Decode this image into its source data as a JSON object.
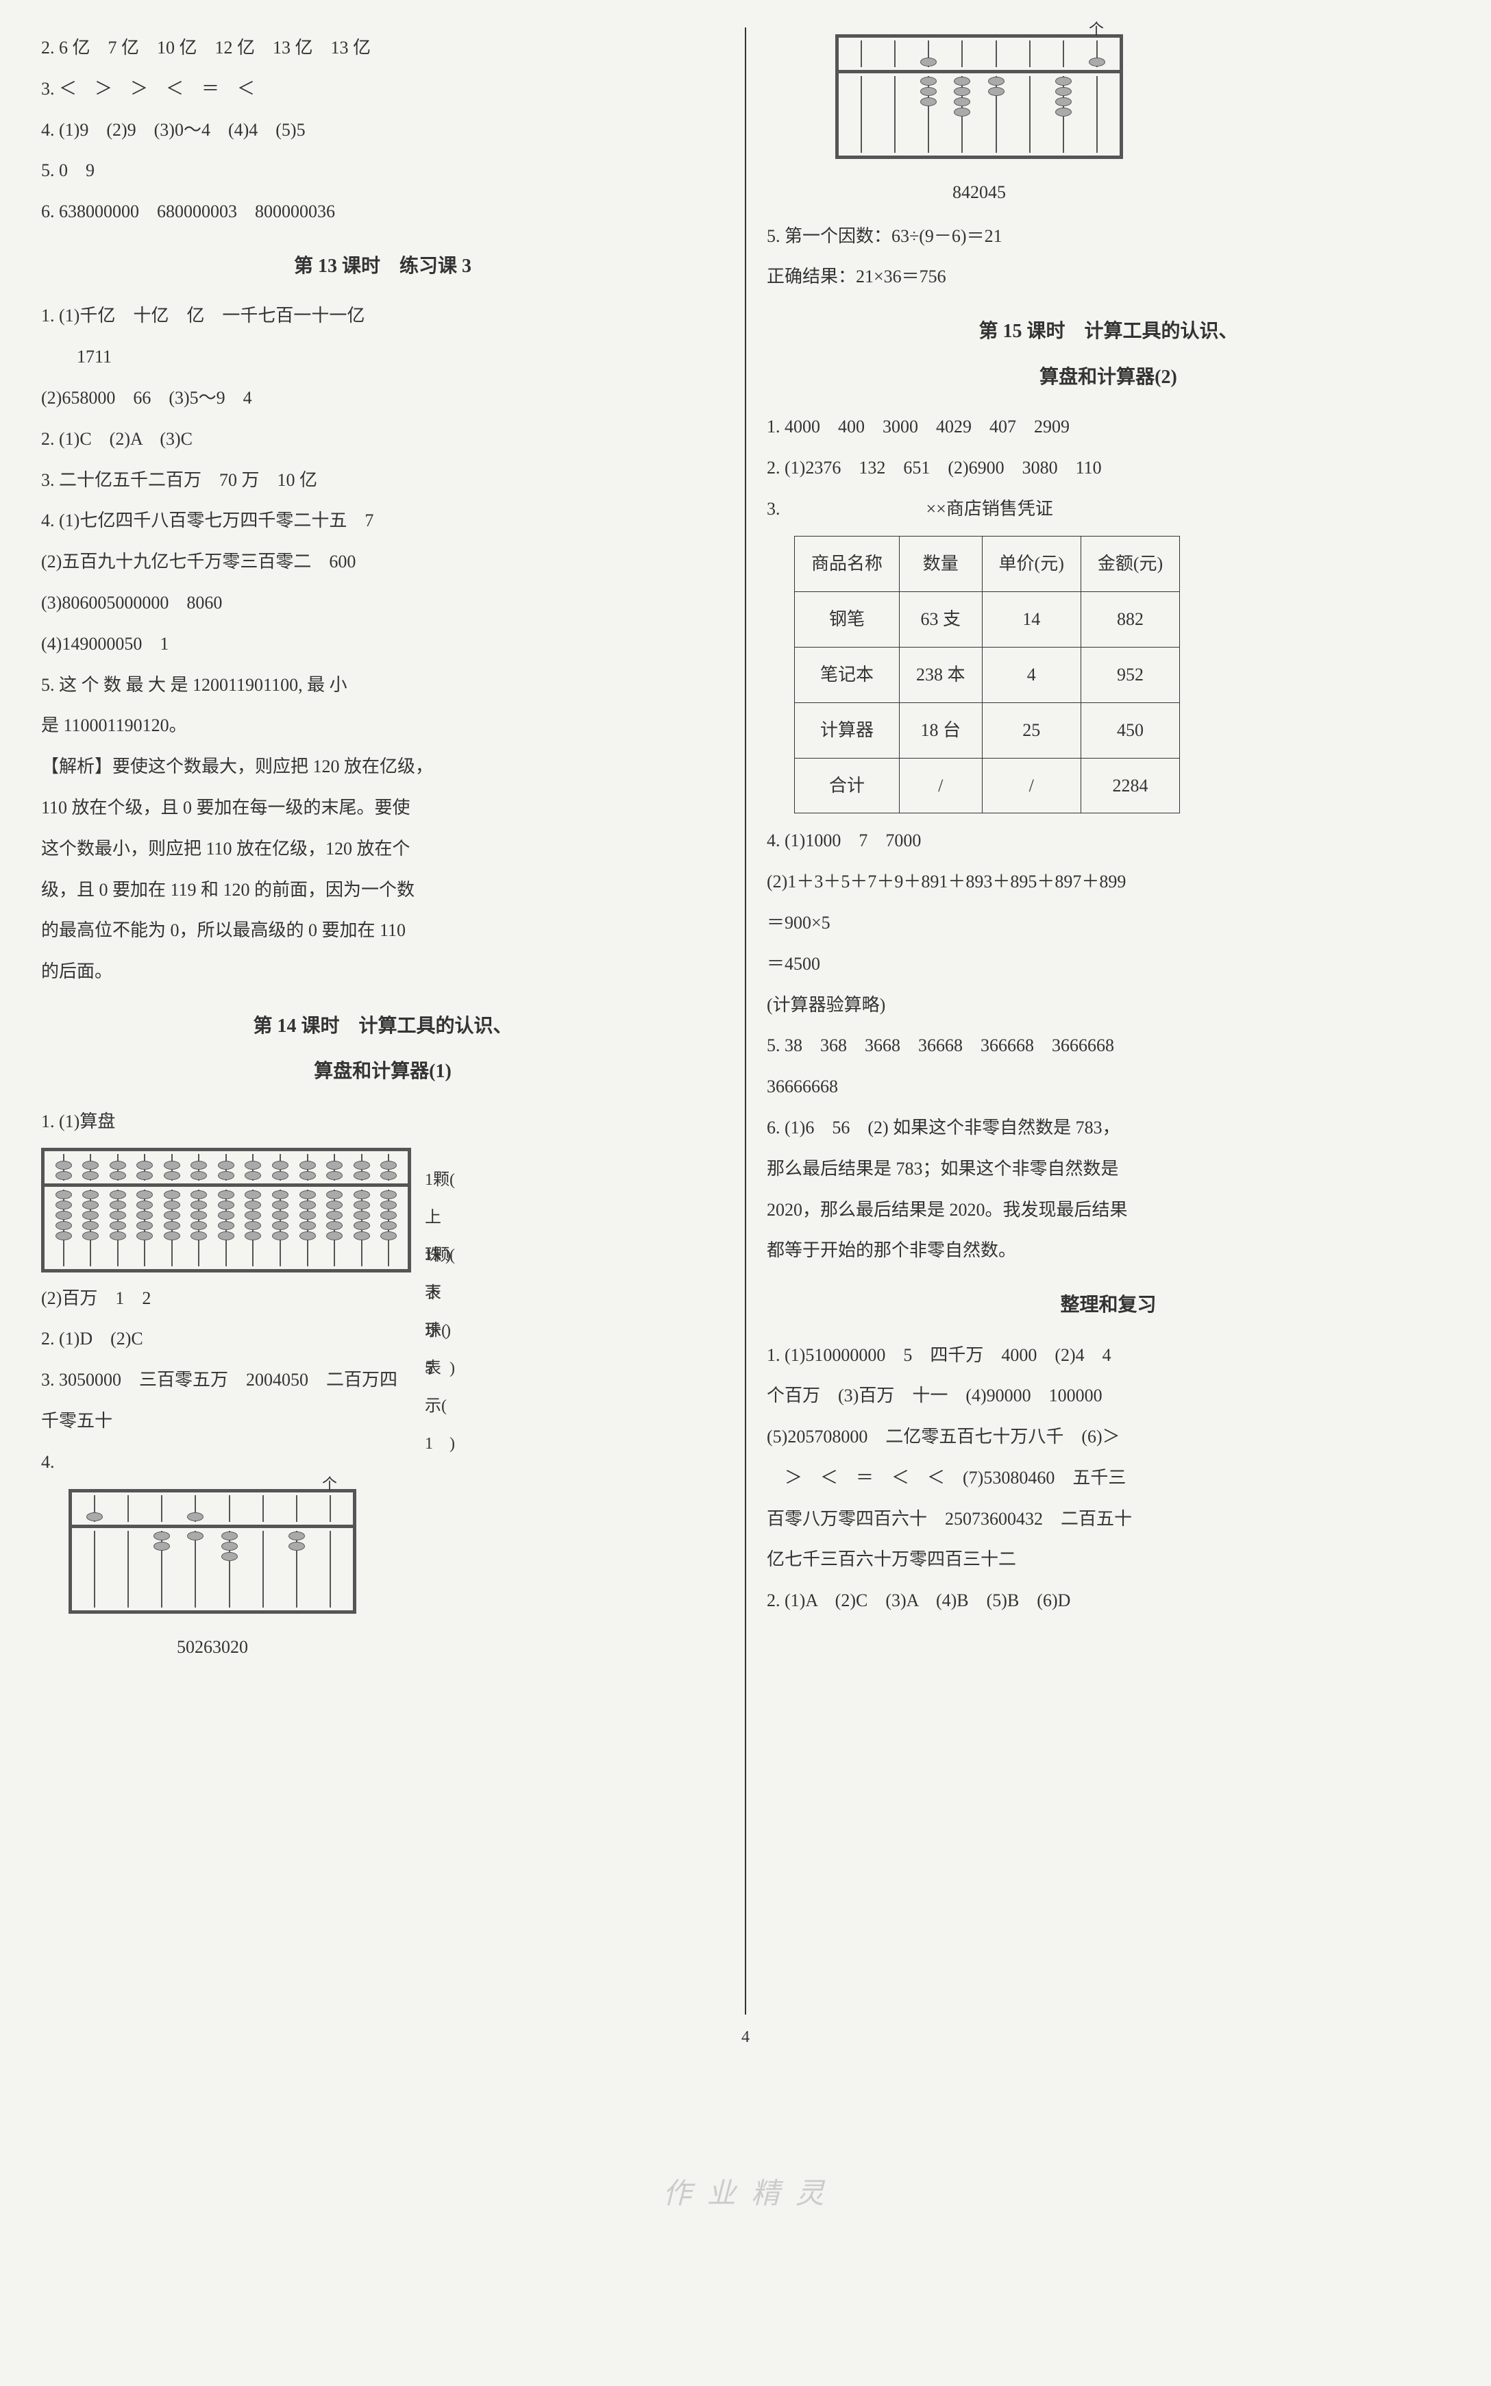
{
  "left": {
    "l1": "2. 6 亿　7 亿　10 亿　12 亿　13 亿　13 亿",
    "l2": "3. ＜　＞　＞　＜　＝　＜",
    "l3": "4. (1)9　(2)9　(3)0～4　(4)4　(5)5",
    "l4": "5. 0　9",
    "l5": "6. 638000000　680000003　800000036",
    "t13": "第 13 课时　练习课 3",
    "l6": "1. (1)千亿　十亿　亿　一千七百一十一亿",
    "l6b": "　　1711",
    "l7": "(2)658000　66　(3)5～9　4",
    "l8": "2. (1)C　(2)A　(3)C",
    "l9": "3. 二十亿五千二百万　70 万　10 亿",
    "l10": "4. (1)七亿四千八百零七万四千零二十五　7",
    "l11": "(2)五百九十九亿七千万零三百零二　600",
    "l12": "(3)806005000000　8060",
    "l13": "(4)149000050　1",
    "l14a": "5. 这 个 数 最 大 是 120011901100, 最 小",
    "l14b": "是 110001190120。",
    "exp1": "【解析】要使这个数最大，则应把 120 放在亿级，",
    "exp2": "110 放在个级，且 0 要加在每一级的末尾。要使",
    "exp3": "这个数最小，则应把 110 放在亿级，120 放在个",
    "exp4": "级，且 0 要加在 119 和 120 的前面，因为一个数",
    "exp5": "的最高位不能为 0，所以最高级的 0 要加在 110",
    "exp6": "的后面。",
    "t14a": "第 14 课时　计算工具的认识、",
    "t14b": "算盘和计算器(1)",
    "l15": "1. (1)算盘",
    "anno_top": "1颗( 上珠 )表示(　5　)",
    "anno_bot": "1颗( 下珠 )表示(　1　)",
    "l16": "(2)百万　1　2",
    "l17": "2. (1)D　(2)C",
    "l18a": "3. 3050000　三百零五万　2004050　二百万四",
    "l18b": "千零五十",
    "l19": "4.",
    "ge": "个",
    "ab1_label": "50263020"
  },
  "right": {
    "ge": "个",
    "ab2_label": "842045",
    "r1": "5. 第一个因数：63÷(9－6)＝21",
    "r2": "正确结果：21×36＝756",
    "t15a": "第 15 课时　计算工具的认识、",
    "t15b": "算盘和计算器(2)",
    "r3": "1. 4000　400　3000　4029　407　2909",
    "r4": "2. (1)2376　132　651　(2)6900　3080　110",
    "r5": "3.",
    "table_title": "××商店销售凭证",
    "table": {
      "headers": [
        "商品名称",
        "数量",
        "单价(元)",
        "金额(元)"
      ],
      "rows": [
        [
          "钢笔",
          "63 支",
          "14",
          "882"
        ],
        [
          "笔记本",
          "238 本",
          "4",
          "952"
        ],
        [
          "计算器",
          "18 台",
          "25",
          "450"
        ],
        [
          "合计",
          "/",
          "/",
          "2284"
        ]
      ]
    },
    "r6": "4. (1)1000　7　7000",
    "r7": "(2)1＋3＋5＋7＋9＋891＋893＋895＋897＋899",
    "r8": "＝900×5",
    "r9": "＝4500",
    "r10": "(计算器验算略)",
    "r11": "5. 38　368　3668　36668　366668　3666668",
    "r11b": "36666668",
    "r12a": "6. (1)6　56　(2) 如果这个非零自然数是 783，",
    "r12b": "那么最后结果是 783；如果这个非零自然数是",
    "r12c": "2020，那么最后结果是 2020。我发现最后结果",
    "r12d": "都等于开始的那个非零自然数。",
    "t16": "整理和复习",
    "r13a": "1. (1)510000000　5　四千万　4000　(2)4　4",
    "r13b": "个百万　(3)百万　十一　(4)90000　100000",
    "r13c": "(5)205708000　二亿零五百七十万八千　(6)＞",
    "r13d": "　＞　＜　＝　＜　＜　(7)53080460　五千三",
    "r13e": "百零八万零四百六十　25073600432　二百五十",
    "r13f": "亿七千三百六十万零四百三十二",
    "r14": "2. (1)A　(2)C　(3)A　(4)B　(5)B　(6)D"
  },
  "page_num": "4",
  "watermark": "作 业 精 灵",
  "abacus": {
    "ab_50263020": {
      "rods": 8,
      "upper": [
        1,
        0,
        0,
        1,
        0,
        0,
        0,
        0
      ],
      "lower": [
        0,
        0,
        2,
        1,
        3,
        0,
        2,
        0
      ]
    },
    "ab_842045": {
      "rods": 8,
      "upper": [
        0,
        0,
        1,
        0,
        0,
        0,
        0,
        1
      ],
      "lower": [
        0,
        0,
        3,
        4,
        2,
        0,
        4,
        0
      ]
    },
    "ab_demo": {
      "rods": 13,
      "upper_full": 2,
      "lower_full": 5
    }
  },
  "colors": {
    "bg": "#f4f4f0",
    "text": "#333333",
    "frame": "#555555",
    "bead": "#aaaaaa"
  }
}
